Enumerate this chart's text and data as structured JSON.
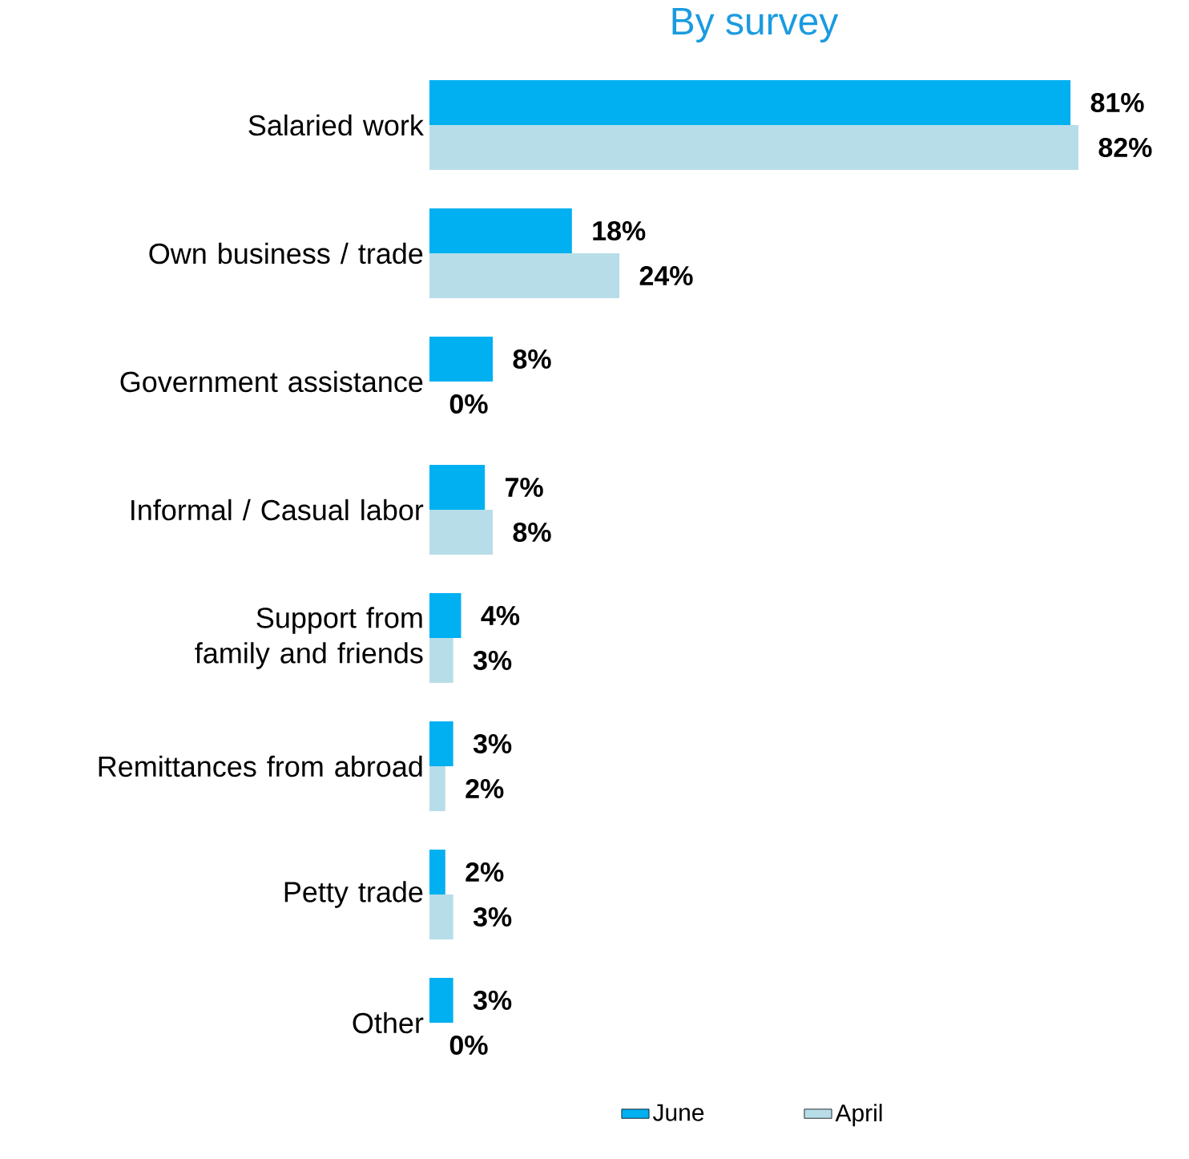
{
  "chart_data": {
    "type": "bar",
    "orientation": "horizontal",
    "title": "By survey",
    "categories": [
      "Salaried work",
      "Own business / trade",
      "Government assistance",
      "Informal / Casual labor",
      "Support from family and friends",
      "Remittances from abroad",
      "Petty trade",
      "Other"
    ],
    "series": [
      {
        "name": "June",
        "color": "#00b0f0",
        "values": [
          81,
          18,
          8,
          7,
          4,
          3,
          2,
          3
        ],
        "value_labels": [
          "81%",
          "18%",
          "8%",
          "7%",
          "4%",
          "3%",
          "2%",
          "3%"
        ]
      },
      {
        "name": "April",
        "color": "#b7dde8",
        "values": [
          82,
          24,
          0,
          8,
          3,
          2,
          3,
          0
        ],
        "value_labels": [
          "82%",
          "24%",
          "0%",
          "8%",
          "3%",
          "2%",
          "3%",
          "0%"
        ]
      }
    ],
    "legend": "bottom"
  }
}
